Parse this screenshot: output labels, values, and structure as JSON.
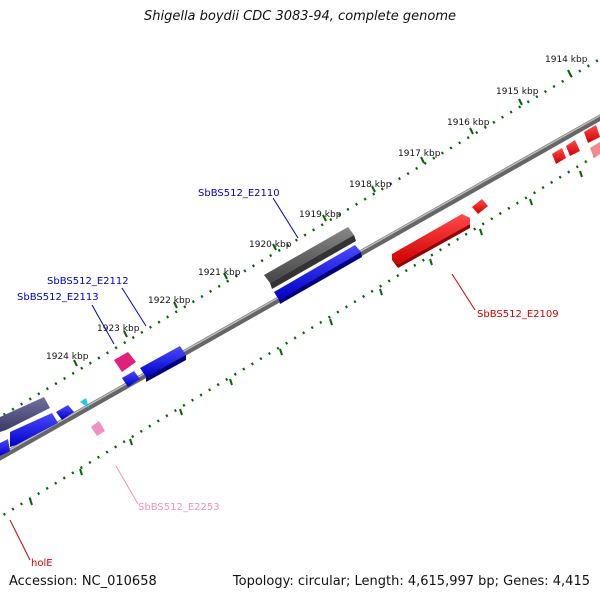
{
  "title": "Shigella boydii CDC 3083-94, complete genome",
  "footer": {
    "accession": "Accession: NC_010658",
    "summary": "Topology: circular; Length: 4,615,997 bp; Genes: 4,415"
  },
  "ruler_ticks": [
    "1914 kbp",
    "1915 kbp",
    "1916 kbp",
    "1917 kbp",
    "1918 kbp",
    "1919 kbp",
    "1920 kbp",
    "1921 kbp",
    "1922 kbp",
    "1923 kbp",
    "1924 kbp"
  ],
  "gene_labels": {
    "e2110": "SbBS512_E2110",
    "e2112": "SbBS512_E2112",
    "e2113": "SbBS512_E2113",
    "e2109": "SbBS512_E2109",
    "e2253": "SbBS512_E2253",
    "hole": "holE"
  },
  "colors": {
    "forward": "#0000dd",
    "reverse": "#ee0000",
    "pseudo": "#666666",
    "pink": "#f090c0",
    "magenta": "#e0207a",
    "cyan": "#20c8f0",
    "ruler_green": "#006600"
  }
}
